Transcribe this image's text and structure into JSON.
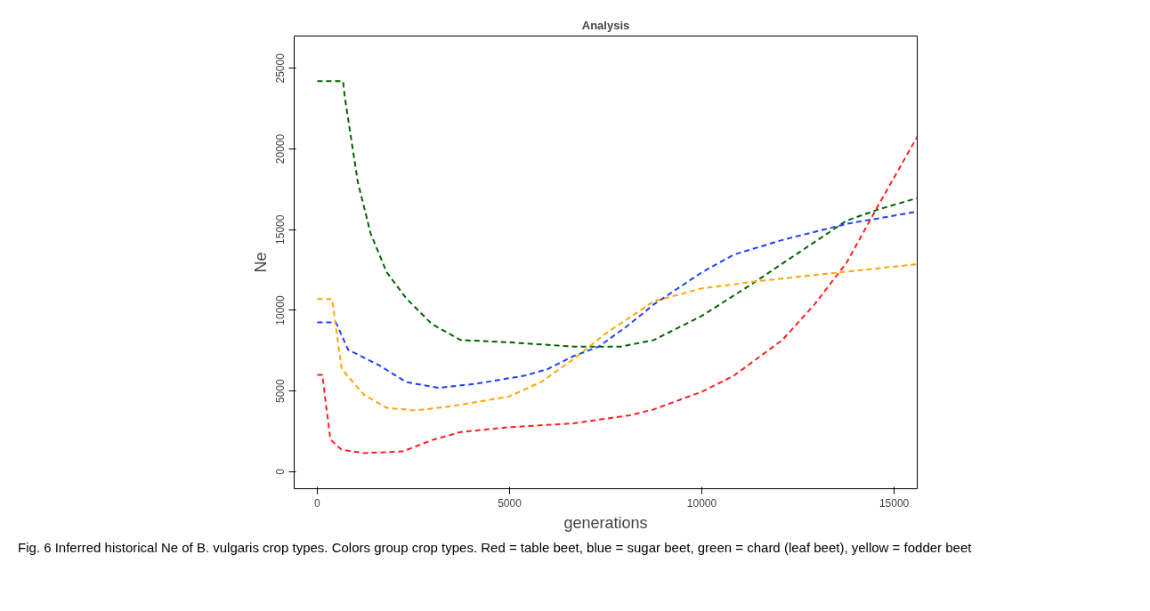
{
  "chart_data": {
    "type": "line",
    "title": "Analysis",
    "xlabel": "generations",
    "ylabel": "Ne",
    "xlim": [
      -600,
      15600
    ],
    "ylim": [
      -1050,
      27000
    ],
    "xticks": [
      0,
      5000,
      10000,
      15000
    ],
    "yticks": [
      0,
      5000,
      10000,
      15000,
      20000,
      25000
    ],
    "line_style": "dashed",
    "annotations": [
      "Fig. 6 Inferred historical Ne of B. vulgaris crop types. Colors group crop types. Red = table beet, blue = sugar beet, green = chard (leaf beet), yellow = fodder beet"
    ],
    "series": [
      {
        "color": "#006400",
        "x": [
          0,
          669,
          720,
          1054,
          1388,
          1806,
          2308,
          2977,
          3729,
          4983,
          6656,
          7492,
          7910,
          8746,
          10000,
          11254,
          12508,
          13763,
          14599,
          15600
        ],
        "values": [
          24200,
          24200,
          23160,
          17960,
          14760,
          12360,
          10760,
          9160,
          8160,
          8020,
          7760,
          7760,
          7760,
          8160,
          9660,
          11560,
          13560,
          15560,
          16260,
          16960
        ]
      },
      {
        "color": "#1f3fff",
        "x": [
          0,
          485,
          803,
          1639,
          2308,
          3144,
          4147,
          5401,
          5987,
          6656,
          7324,
          8077,
          8746,
          10000,
          10836,
          12090,
          13763,
          15600
        ],
        "values": [
          9250,
          9250,
          7560,
          6560,
          5560,
          5200,
          5460,
          5960,
          6360,
          7160,
          7760,
          9060,
          10360,
          12360,
          13460,
          14360,
          15360,
          16120
        ]
      },
      {
        "color": "#ffa500",
        "x": [
          0,
          385,
          636,
          1221,
          1806,
          2559,
          3478,
          4983,
          5819,
          6656,
          7492,
          8127,
          8746,
          10000,
          11421,
          13595,
          15600
        ],
        "values": [
          10700,
          10700,
          6360,
          4760,
          3960,
          3800,
          4060,
          4660,
          5560,
          6960,
          8560,
          9560,
          10560,
          11360,
          11800,
          12360,
          12860
        ]
      },
      {
        "color": "#ff2020",
        "x": [
          0,
          134,
          217,
          343,
          636,
          1221,
          2224,
          2977,
          3729,
          4983,
          6656,
          8127,
          8746,
          10000,
          10836,
          12090,
          12926,
          13763,
          14599,
          15600
        ],
        "values": [
          6000,
          6000,
          4360,
          2000,
          1360,
          1160,
          1260,
          1960,
          2460,
          2760,
          3000,
          3500,
          3860,
          4960,
          5960,
          8160,
          10360,
          12960,
          16560,
          20760
        ]
      }
    ]
  }
}
